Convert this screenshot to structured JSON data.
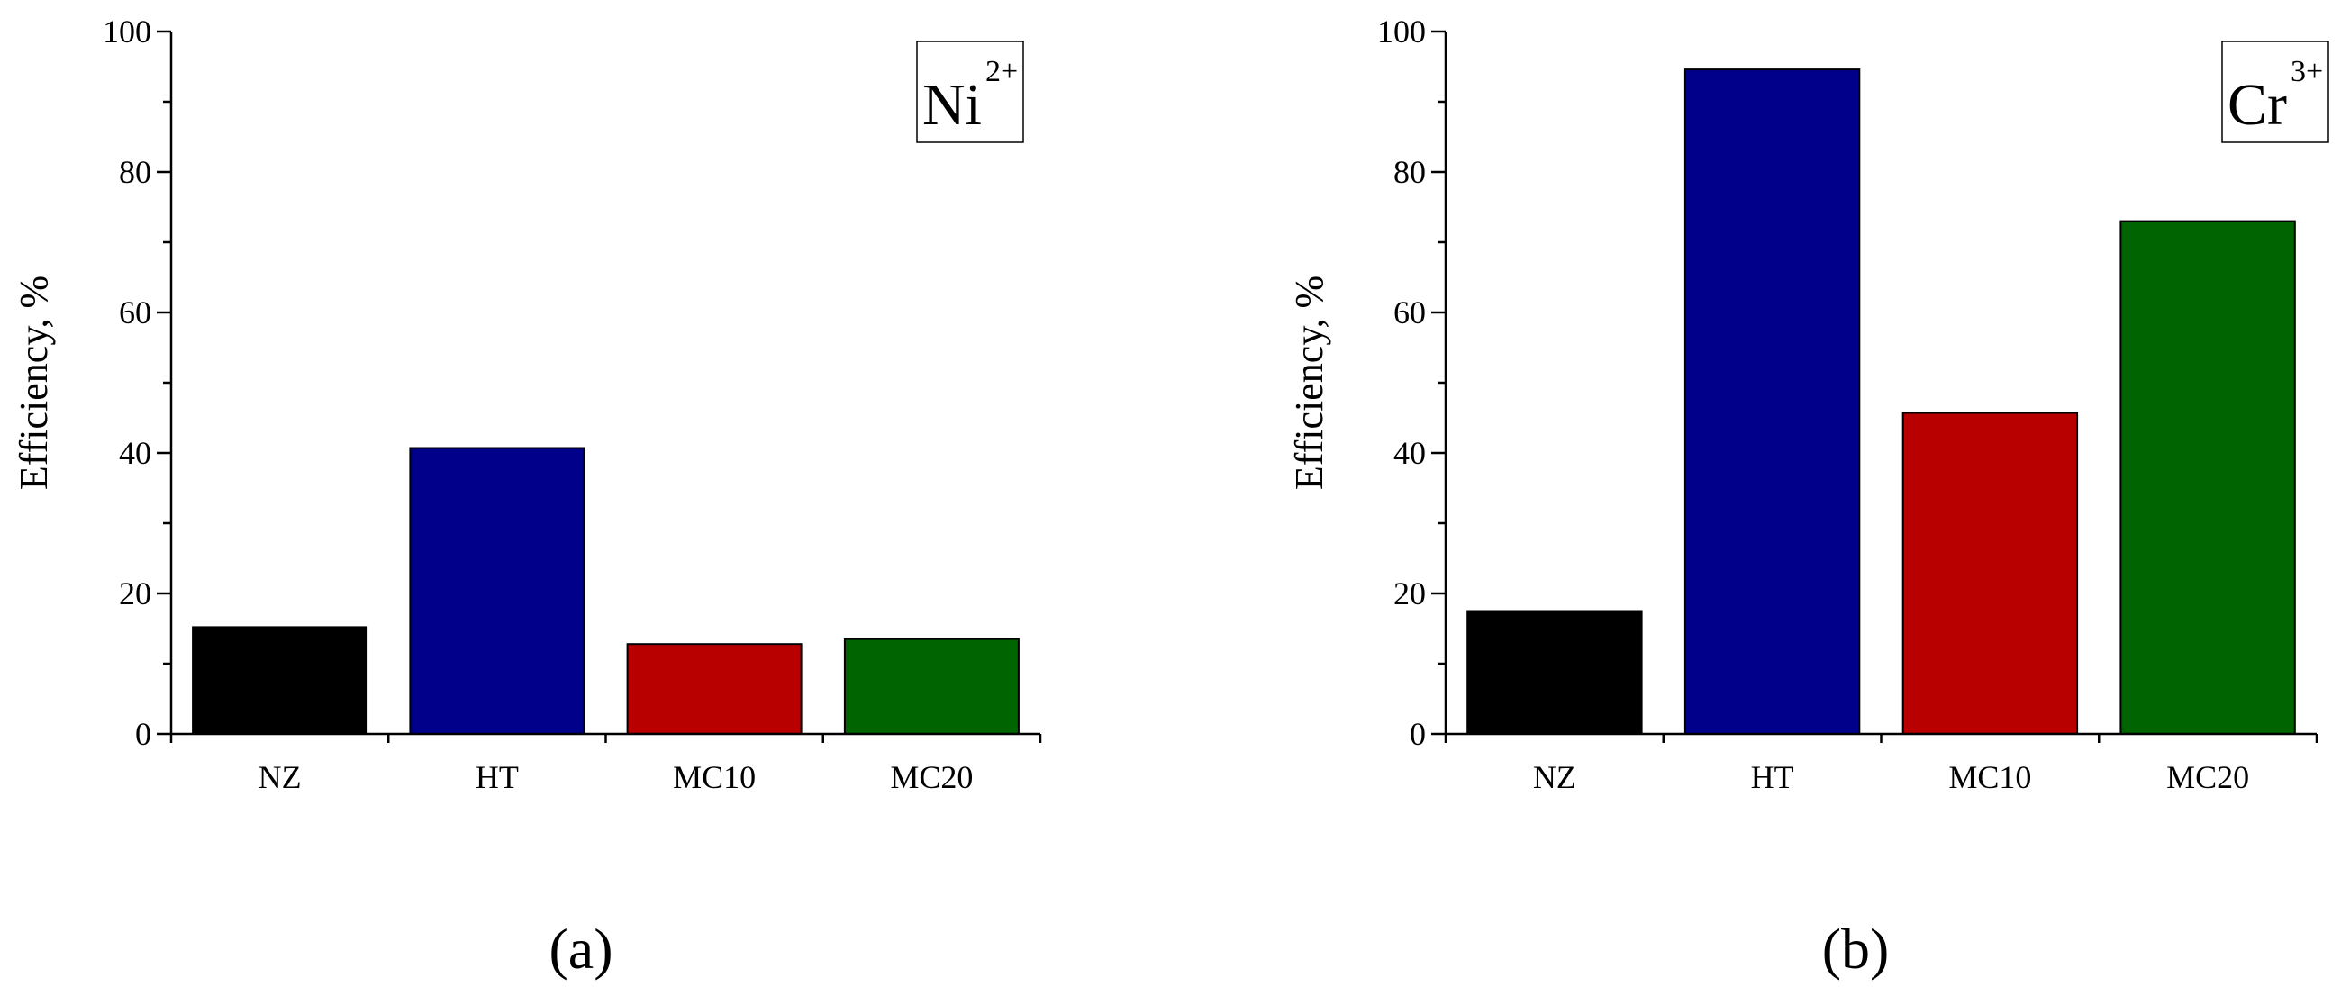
{
  "chart_data": [
    {
      "type": "bar",
      "panel_label": "(a)",
      "ion_base": "Ni",
      "ion_charge": "2+",
      "categories": [
        "NZ",
        "HT",
        "MC10",
        "MC20"
      ],
      "values": [
        15.2,
        40.7,
        12.8,
        13.5
      ],
      "colors": [
        "#000000",
        "#00008B",
        "#B80000",
        "#006400"
      ],
      "ylabel": "Efficiency, %",
      "ylim": [
        0,
        100
      ],
      "yticks": [
        "0",
        "20",
        "40",
        "60",
        "80",
        "100"
      ],
      "grid": false,
      "legend": "top-right"
    },
    {
      "type": "bar",
      "panel_label": "(b)",
      "ion_base": "Cr",
      "ion_charge": "3+",
      "categories": [
        "NZ",
        "HT",
        "MC10",
        "MC20"
      ],
      "values": [
        17.5,
        94.6,
        45.7,
        73.0
      ],
      "colors": [
        "#000000",
        "#00008B",
        "#B80000",
        "#006400"
      ],
      "ylabel": "Efficiency, %",
      "ylim": [
        0,
        100
      ],
      "yticks": [
        "0",
        "20",
        "40",
        "60",
        "80",
        "100"
      ],
      "grid": false,
      "legend": "top-right"
    }
  ]
}
